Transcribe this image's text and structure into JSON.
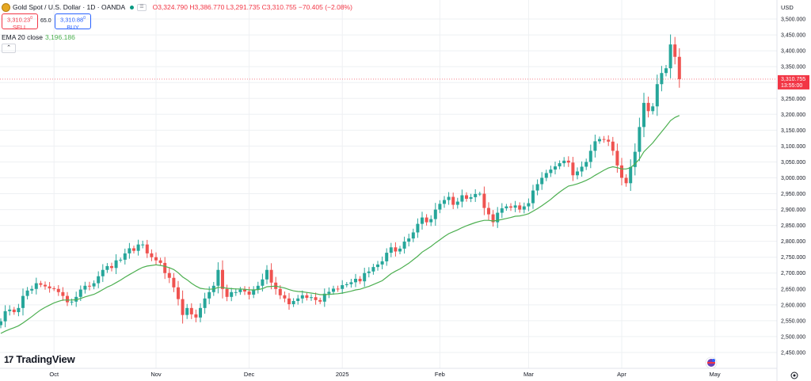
{
  "header": {
    "symbol_title": "Gold Spot / U.S. Dollar · 1D · OANDA",
    "ohlc_text": "O3,324.790 H3,386.770 L3,291.735 C3,310.755 −70.405 (−2.08%)",
    "sell_price": "3,310.23",
    "sell_sup": "0",
    "sell_label": "SELL",
    "spread": "65.0",
    "buy_price": "3,310.88",
    "buy_sup": "0",
    "buy_label": "BUY",
    "ema_label": "EMA 20 close",
    "ema_value": "3,196.186",
    "collapse_glyph": "⌃"
  },
  "branding": {
    "logo_mark": "17",
    "logo_text": "TradingView"
  },
  "colors": {
    "up": "#26a69a",
    "down": "#ef5350",
    "ema": "#4caf50",
    "grid": "#eef0f3",
    "price_tag": "#f23645"
  },
  "chart_data": {
    "type": "candlestick",
    "currency_label": "USD",
    "y_range": [
      2400,
      3560
    ],
    "y_ticks": [
      2450,
      2500,
      2550,
      2600,
      2650,
      2700,
      2750,
      2800,
      2850,
      2900,
      2950,
      3000,
      3050,
      3100,
      3150,
      3200,
      3250,
      3300,
      3350,
      3400,
      3450,
      3500
    ],
    "y_tick_labels": [
      "2,450.000",
      "2,500.000",
      "2,550.000",
      "2,600.000",
      "2,650.000",
      "2,700.000",
      "2,750.000",
      "2,800.000",
      "2,850.000",
      "2,900.000",
      "2,950.000",
      "3,000.000",
      "3,050.000",
      "3,100.000",
      "3,150.000",
      "3,200.000",
      "3,250.000",
      "3,300.000",
      "3,350.000",
      "3,400.000",
      "3,450.000",
      "3,500.000"
    ],
    "x_labels": [
      {
        "label": "Oct",
        "index": 12
      },
      {
        "label": "Nov",
        "index": 35
      },
      {
        "label": "Dec",
        "index": 56
      },
      {
        "label": "2025",
        "index": 77
      },
      {
        "label": "Feb",
        "index": 99
      },
      {
        "label": "Mar",
        "index": 119
      },
      {
        "label": "Apr",
        "index": 140
      },
      {
        "label": "May",
        "index": 161
      }
    ],
    "last_price": 3310.755,
    "last_price_label": "3,310.755",
    "countdown_label": "13:55:00",
    "closes": [
      2548,
      2580,
      2585,
      2577,
      2590,
      2628,
      2645,
      2650,
      2668,
      2663,
      2658,
      2652,
      2650,
      2640,
      2628,
      2608,
      2610,
      2625,
      2648,
      2660,
      2658,
      2668,
      2690,
      2710,
      2722,
      2716,
      2740,
      2742,
      2762,
      2778,
      2770,
      2790,
      2790,
      2762,
      2750,
      2740,
      2732,
      2700,
      2685,
      2655,
      2618,
      2568,
      2590,
      2570,
      2560,
      2590,
      2620,
      2640,
      2660,
      2710,
      2650,
      2625,
      2640,
      2640,
      2648,
      2642,
      2632,
      2648,
      2660,
      2680,
      2710,
      2670,
      2650,
      2630,
      2620,
      2602,
      2612,
      2620,
      2630,
      2622,
      2624,
      2615,
      2610,
      2635,
      2641,
      2651,
      2650,
      2662,
      2665,
      2671,
      2682,
      2674,
      2700,
      2705,
      2719,
      2727,
      2737,
      2764,
      2781,
      2768,
      2777,
      2799,
      2809,
      2828,
      2855,
      2875,
      2860,
      2870,
      2900,
      2918,
      2930,
      2940,
      2915,
      2925,
      2945,
      2934,
      2939,
      2949,
      2950,
      2905,
      2885,
      2860,
      2890,
      2904,
      2910,
      2906,
      2913,
      2900,
      2910,
      2920,
      2960,
      2980,
      3000,
      3015,
      3026,
      3036,
      3046,
      3054,
      3048,
      3008,
      3020,
      3035,
      3050,
      3085,
      3115,
      3122,
      3120,
      3114,
      3085,
      3039,
      3000,
      2983,
      3034,
      3082,
      3160,
      3236,
      3210,
      3225,
      3295,
      3330,
      3345,
      3420,
      3381,
      3310.755
    ],
    "ema20": [
      2510,
      2517,
      2523,
      2528,
      2534,
      2543,
      2553,
      2563,
      2574,
      2584,
      2592,
      2599,
      2606,
      2611,
      2615,
      2615,
      2615,
      2616,
      2620,
      2625,
      2629,
      2633,
      2640,
      2648,
      2656,
      2662,
      2670,
      2678,
      2687,
      2695,
      2703,
      2711,
      2718,
      2722,
      2724,
      2726,
      2724,
      2721,
      2717,
      2711,
      2701,
      2688,
      2679,
      2668,
      2659,
      2652,
      2650,
      2649,
      2650,
      2655,
      2655,
      2652,
      2651,
      2650,
      2650,
      2649,
      2647,
      2647,
      2648,
      2651,
      2657,
      2658,
      2659,
      2656,
      2653,
      2648,
      2644,
      2642,
      2641,
      2639,
      2637,
      2635,
      2632,
      2632,
      2633,
      2634,
      2635,
      2637,
      2640,
      2643,
      2647,
      2649,
      2654,
      2658,
      2664,
      2670,
      2676,
      2687,
      2698,
      2706,
      2713,
      2722,
      2731,
      2742,
      2753,
      2766,
      2775,
      2784,
      2795,
      2805,
      2815,
      2824,
      2830,
      2836,
      2843,
      2849,
      2854,
      2859,
      2863,
      2866,
      2866,
      2864,
      2866,
      2869,
      2872,
      2875,
      2879,
      2880,
      2883,
      2887,
      2895,
      2903,
      2912,
      2922,
      2932,
      2944,
      2955,
      2965,
      2974,
      2977,
      2981,
      2986,
      2992,
      2999,
      3008,
      3016,
      3024,
      3031,
      3035,
      3032,
      3028,
      3028,
      3032,
      3044,
      3059,
      3082,
      3096,
      3110,
      3128,
      3145,
      3162,
      3180,
      3190,
      3196.186
    ]
  }
}
